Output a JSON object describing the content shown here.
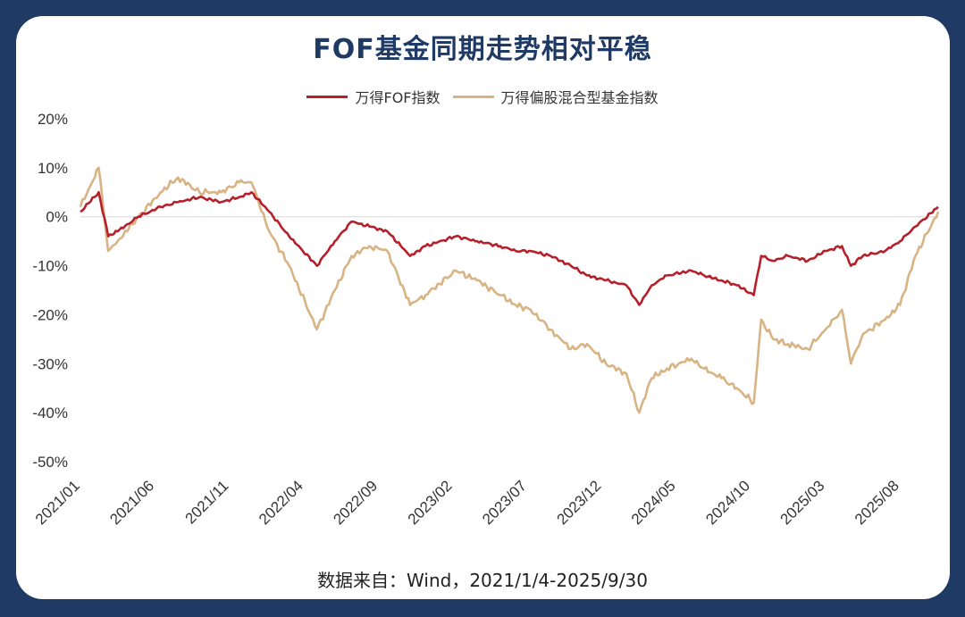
{
  "chart_data": {
    "type": "line",
    "title": "FOF基金同期走势相对平稳",
    "y_ticks": [
      "20%",
      "10%",
      "0%",
      "-10%",
      "-20%",
      "-30%",
      "-40%",
      "-50%"
    ],
    "ylim": [
      -50,
      20
    ],
    "x_ticks": [
      "2021/01",
      "2021/06",
      "2021/11",
      "2022/04",
      "2022/09",
      "2023/02",
      "2023/07",
      "2023/12",
      "2024/05",
      "2024/10",
      "2025/03",
      "2025/08"
    ],
    "xlim": [
      "2021-01-04",
      "2025-09-30"
    ],
    "grid": false,
    "legend_position": "top-center",
    "series": [
      {
        "name": "万得FOF指数",
        "color": "#b5202a",
        "x": [
          "2021-01-04",
          "2021-02-10",
          "2021-03-01",
          "2021-03-20",
          "2021-05-01",
          "2021-06-15",
          "2021-07-20",
          "2021-09-01",
          "2021-10-15",
          "2021-11-20",
          "2021-12-15",
          "2022-01-20",
          "2022-03-01",
          "2022-04-26",
          "2022-06-01",
          "2022-07-05",
          "2022-08-10",
          "2022-09-15",
          "2022-10-31",
          "2022-12-01",
          "2023-01-31",
          "2023-03-15",
          "2023-05-01",
          "2023-06-01",
          "2023-07-01",
          "2023-08-10",
          "2023-09-20",
          "2023-10-23",
          "2023-11-30",
          "2024-01-10",
          "2024-02-05",
          "2024-03-01",
          "2024-04-01",
          "2024-05-20",
          "2024-06-15",
          "2024-07-20",
          "2024-08-20",
          "2024-09-23",
          "2024-10-08",
          "2024-11-01",
          "2024-12-01",
          "2025-01-10",
          "2025-02-15",
          "2025-03-20",
          "2025-04-07",
          "2025-05-01",
          "2025-06-15",
          "2025-07-15",
          "2025-08-15",
          "2025-09-30"
        ],
        "values": [
          1,
          5,
          -4,
          -3,
          0,
          2,
          3,
          4,
          3,
          4,
          5,
          1,
          -4,
          -10,
          -5,
          -1,
          -2,
          -3,
          -8,
          -6,
          -4,
          -5,
          -6,
          -7,
          -7,
          -8,
          -10,
          -12,
          -13,
          -14,
          -18,
          -14,
          -12,
          -11,
          -12,
          -13,
          -14,
          -16,
          -8,
          -9,
          -8,
          -9,
          -7,
          -6,
          -10,
          -8,
          -7,
          -5,
          -2,
          2
        ]
      },
      {
        "name": "万得偏股混合型基金指数",
        "color": "#d8b384",
        "x": [
          "2021-01-04",
          "2021-02-10",
          "2021-03-01",
          "2021-03-20",
          "2021-05-01",
          "2021-06-15",
          "2021-07-20",
          "2021-09-01",
          "2021-10-15",
          "2021-11-20",
          "2021-12-15",
          "2022-01-20",
          "2022-03-01",
          "2022-04-26",
          "2022-06-01",
          "2022-07-05",
          "2022-08-10",
          "2022-09-15",
          "2022-10-31",
          "2022-12-01",
          "2023-01-31",
          "2023-03-15",
          "2023-05-01",
          "2023-06-01",
          "2023-07-01",
          "2023-08-10",
          "2023-09-20",
          "2023-10-23",
          "2023-11-30",
          "2024-01-10",
          "2024-02-05",
          "2024-03-01",
          "2024-04-01",
          "2024-05-20",
          "2024-06-15",
          "2024-07-20",
          "2024-08-20",
          "2024-09-23",
          "2024-10-08",
          "2024-11-01",
          "2024-12-01",
          "2025-01-10",
          "2025-02-15",
          "2025-03-20",
          "2025-04-07",
          "2025-05-01",
          "2025-06-15",
          "2025-07-15",
          "2025-08-15",
          "2025-09-30"
        ],
        "values": [
          2,
          10,
          -7,
          -5,
          0,
          5,
          8,
          5,
          5,
          7,
          7,
          -3,
          -10,
          -23,
          -15,
          -8,
          -6,
          -7,
          -18,
          -16,
          -11,
          -13,
          -16,
          -18,
          -19,
          -23,
          -27,
          -26,
          -30,
          -32,
          -40,
          -33,
          -31,
          -29,
          -31,
          -33,
          -35,
          -38,
          -21,
          -25,
          -26,
          -27,
          -23,
          -19,
          -30,
          -24,
          -21,
          -18,
          -8,
          1
        ]
      }
    ]
  },
  "source_text": "数据来自：Wind，2021/1/4-2025/9/30"
}
